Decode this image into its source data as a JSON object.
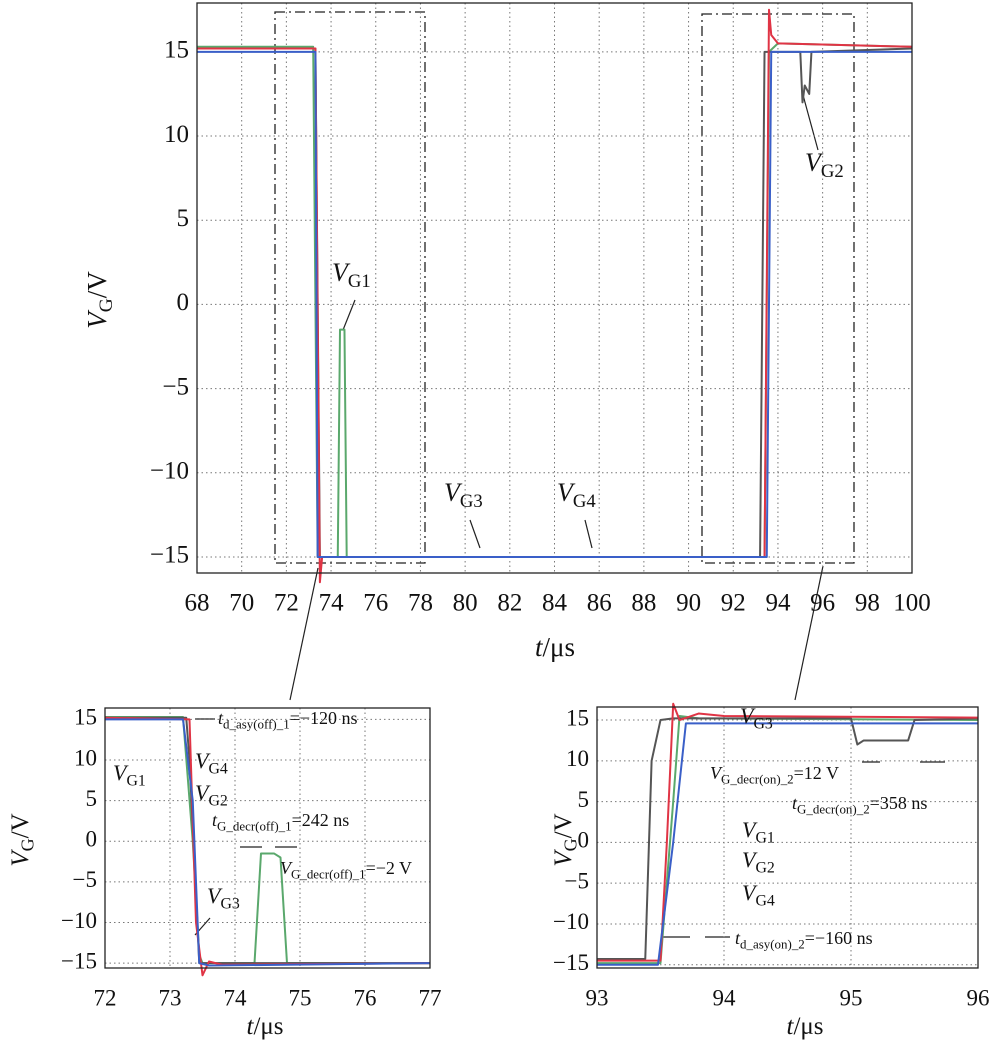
{
  "chart_data": [
    {
      "type": "line",
      "xlabel": {
        "main": "t",
        "rest": "/μs"
      },
      "ylabel": {
        "main": "V",
        "sub": "G",
        "rest": "/V"
      },
      "xlim": [
        68,
        100
      ],
      "xticks": [
        68,
        70,
        72,
        74,
        76,
        78,
        80,
        82,
        84,
        86,
        88,
        90,
        92,
        94,
        96,
        98,
        100
      ],
      "ylim": [
        -15.95,
        17.9
      ],
      "yticks": [
        {
          "value": -15,
          "label": "−15"
        },
        {
          "value": -10,
          "label": "−10"
        },
        {
          "value": -5,
          "label": "−5"
        },
        0,
        5,
        10,
        15
      ],
      "grid": true,
      "series": [
        {
          "color": "#5aa86c",
          "x": [
            68,
            73.2,
            73.4,
            73.6,
            74.3,
            74.4,
            74.6,
            74.7,
            74.9,
            93.4,
            93.6,
            94,
            100
          ],
          "values": [
            15.3,
            15.3,
            -15,
            -15,
            -15,
            -1.5,
            -1.5,
            -15,
            -15,
            -15,
            15,
            15.5,
            15.3
          ]
        },
        {
          "color": "#555555",
          "x": [
            68,
            73.3,
            73.5,
            93.2,
            93.4,
            93.6,
            95,
            95.1,
            95.2,
            95.4,
            95.5,
            100
          ],
          "values": [
            15.2,
            15.2,
            -15,
            -15,
            15,
            15,
            15,
            12,
            13,
            12.5,
            15,
            15.2
          ]
        },
        {
          "color": "#e03445",
          "x": [
            68,
            73.3,
            73.5,
            73.6,
            73.8,
            93.4,
            93.6,
            93.7,
            94,
            100
          ],
          "values": [
            15.2,
            15.2,
            -16.5,
            -15,
            -15,
            -15,
            17.5,
            16,
            15.5,
            15.3
          ]
        },
        {
          "color": "#3a5fc8",
          "x": [
            68,
            73.3,
            73.4,
            93.5,
            93.7,
            100
          ],
          "values": [
            15,
            15,
            -15,
            -15,
            15,
            15
          ]
        }
      ],
      "annotations": [
        {
          "main": "V",
          "sub": "G2"
        },
        {
          "main": "V",
          "sub": "G1"
        },
        {
          "main": "V",
          "sub": "G3"
        },
        {
          "main": "V",
          "sub": "G4"
        }
      ]
    },
    {
      "type": "line",
      "xlabel": {
        "main": "t",
        "rest": "/μs"
      },
      "ylabel": {
        "main": "V",
        "sub": "G",
        "rest": "/V"
      },
      "xlim": [
        72,
        77
      ],
      "xticks": [
        72,
        73,
        74,
        75,
        76,
        77
      ],
      "ylim": [
        -15.6,
        16.4
      ],
      "yticks": [
        {
          "value": -15,
          "label": "−15"
        },
        {
          "value": -10,
          "label": "−10"
        },
        {
          "value": -5,
          "label": "−5"
        },
        0,
        5,
        10,
        15
      ],
      "grid": true,
      "series": [
        {
          "color": "#5aa86c",
          "x": [
            72,
            73.2,
            73.35,
            73.45,
            73.5,
            74.3,
            74.4,
            74.6,
            74.7,
            74.8,
            75,
            77
          ],
          "values": [
            15.3,
            15.3,
            0,
            -14,
            -15,
            -15,
            -1.5,
            -1.5,
            -2,
            -15,
            -15,
            -15
          ]
        },
        {
          "color": "#555555",
          "x": [
            72,
            73.25,
            73.3,
            73.45,
            73.6,
            77
          ],
          "values": [
            15.2,
            15.2,
            10,
            -15,
            -15,
            -15
          ]
        },
        {
          "color": "#e03445",
          "x": [
            72,
            73.3,
            73.4,
            73.5,
            73.6,
            73.8,
            77
          ],
          "values": [
            15.2,
            15,
            -10,
            -16.5,
            -14.8,
            -15.2,
            -15
          ]
        },
        {
          "color": "#3a5fc8",
          "x": [
            72,
            73.2,
            73.35,
            73.45,
            73.6,
            77
          ],
          "values": [
            15,
            15,
            5,
            -15,
            -15.3,
            -15
          ]
        }
      ],
      "annotations": [
        {
          "main": "t",
          "sub": "d_asy(off)_1",
          "rest": "=−120 ns"
        },
        {
          "main": "V",
          "sub": "G4"
        },
        {
          "main": "V",
          "sub": "G1"
        },
        {
          "main": "V",
          "sub": "G2"
        },
        {
          "main": "t",
          "sub": "G_decr(off)_1",
          "rest": "=242 ns"
        },
        {
          "main": "V",
          "sub": "G_decr(off)_1",
          "rest": "=−2 V"
        },
        {
          "main": "V",
          "sub": "G3"
        }
      ]
    },
    {
      "type": "line",
      "xlabel": {
        "main": "t",
        "rest": "/μs"
      },
      "ylabel": {
        "main": "V",
        "sub": "G",
        "rest": "/V"
      },
      "xlim": [
        93,
        96
      ],
      "xticks": [
        93,
        94,
        95,
        96
      ],
      "ylim": [
        -15.4,
        16.6
      ],
      "yticks": [
        {
          "value": -15,
          "label": "−15"
        },
        {
          "value": -10,
          "label": "−10"
        },
        {
          "value": -5,
          "label": "−5"
        },
        0,
        5,
        10,
        15
      ],
      "grid": true,
      "series": [
        {
          "color": "#5aa86c",
          "x": [
            93,
            93.5,
            93.6,
            93.65,
            93.8,
            96
          ],
          "values": [
            -14.8,
            -14.8,
            5,
            15.5,
            15.2,
            15
          ]
        },
        {
          "color": "#555555",
          "x": [
            93,
            93.38,
            93.43,
            93.5,
            93.6,
            95,
            95.05,
            95.1,
            95.45,
            95.5,
            96
          ],
          "values": [
            -14.3,
            -14.3,
            10,
            15,
            15.2,
            15.2,
            12,
            12.5,
            12.5,
            15,
            15.2
          ]
        },
        {
          "color": "#e03445",
          "x": [
            93,
            93.5,
            93.55,
            93.6,
            93.65,
            93.8,
            94,
            96
          ],
          "values": [
            -14.5,
            -14.5,
            0,
            17,
            15,
            15.8,
            15.5,
            15.3
          ]
        },
        {
          "color": "#3a5fc8",
          "x": [
            93,
            93.48,
            93.6,
            93.7,
            96
          ],
          "values": [
            -15,
            -15,
            0,
            14.6,
            14.6
          ]
        }
      ],
      "annotations": [
        {
          "main": "V",
          "sub": "G3"
        },
        {
          "main": "V",
          "sub": "G_decr(on)_2",
          "rest": "=12 V"
        },
        {
          "main": "t",
          "sub": "G_decr(on)_2",
          "rest": "=358 ns"
        },
        {
          "main": "V",
          "sub": "G1"
        },
        {
          "main": "V",
          "sub": "G2"
        },
        {
          "main": "V",
          "sub": "G4"
        },
        {
          "main": "t",
          "sub": "d_asy(on)_2",
          "rest": "=−160 ns"
        }
      ]
    }
  ]
}
